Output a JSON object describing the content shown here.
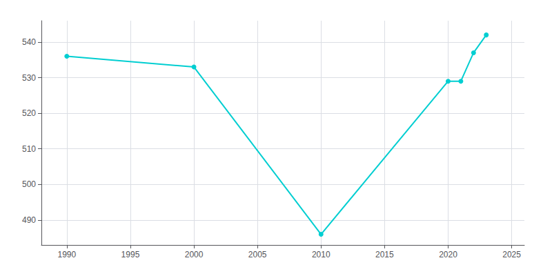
{
  "chart_data": {
    "type": "line",
    "x": [
      1990,
      2000,
      2010,
      2020,
      2021,
      2022,
      2023
    ],
    "values": [
      536,
      533,
      486,
      529,
      529,
      537,
      542
    ],
    "color": "#00CED1",
    "marker": "circle",
    "xlim": [
      1988,
      2026
    ],
    "xticks": [
      1990,
      1995,
      2000,
      2005,
      2010,
      2015,
      2020,
      2025
    ],
    "ylim": [
      483,
      546
    ],
    "yticks": [
      490,
      500,
      510,
      520,
      530,
      540
    ],
    "grid": true
  }
}
